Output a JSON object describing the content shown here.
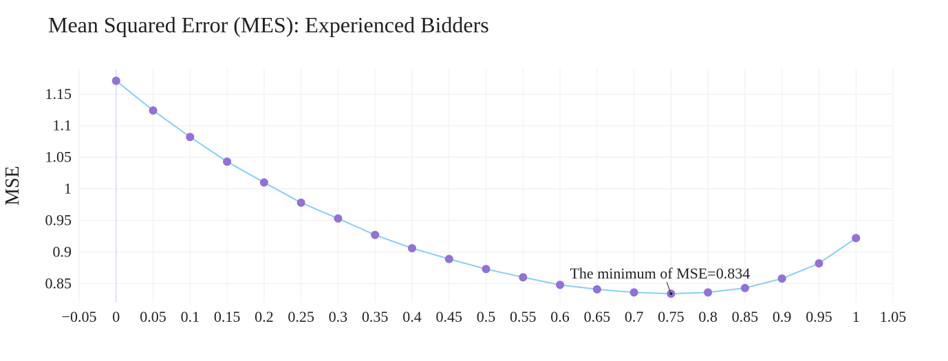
{
  "chart_data": {
    "type": "line",
    "title": "Mean Squared Error (MES): Experienced Bidders",
    "xlabel": "",
    "ylabel": "MSE",
    "xlim": [
      -0.05,
      1.05
    ],
    "ylim": [
      0.82,
      1.19
    ],
    "x_ticks": [
      "−0.05",
      "0",
      "0.05",
      "0.1",
      "0.15",
      "0.2",
      "0.25",
      "0.3",
      "0.35",
      "0.4",
      "0.45",
      "0.5",
      "0.55",
      "0.6",
      "0.65",
      "0.7",
      "0.75",
      "0.8",
      "0.85",
      "0.9",
      "0.95",
      "1",
      "1.05"
    ],
    "x_tick_values": [
      -0.05,
      0,
      0.05,
      0.1,
      0.15,
      0.2,
      0.25,
      0.3,
      0.35,
      0.4,
      0.45,
      0.5,
      0.55,
      0.6,
      0.65,
      0.7,
      0.75,
      0.8,
      0.85,
      0.9,
      0.95,
      1,
      1.05
    ],
    "y_ticks": [
      "0.85",
      "0.9",
      "0.95",
      "1",
      "1.05",
      "1.1",
      "1.15"
    ],
    "y_tick_values": [
      0.85,
      0.9,
      0.95,
      1,
      1.05,
      1.1,
      1.15
    ],
    "grid": true,
    "series": [
      {
        "x": [
          0,
          0.05,
          0.1,
          0.15,
          0.2,
          0.25,
          0.3,
          0.35,
          0.4,
          0.45,
          0.5,
          0.55,
          0.6,
          0.65,
          0.7,
          0.75,
          0.8,
          0.85,
          0.9,
          0.95,
          1
        ],
        "values": [
          1.171,
          1.124,
          1.082,
          1.043,
          1.01,
          0.978,
          0.953,
          0.927,
          0.906,
          0.889,
          0.873,
          0.86,
          0.848,
          0.841,
          0.836,
          0.834,
          0.836,
          0.843,
          0.858,
          0.882,
          0.922
        ],
        "line_color": "#87cefa",
        "marker_color": "#9370db"
      }
    ],
    "annotations": [
      {
        "text": "The minimum of MSE=0.834",
        "x": 0.75,
        "y": 0.834
      }
    ]
  }
}
